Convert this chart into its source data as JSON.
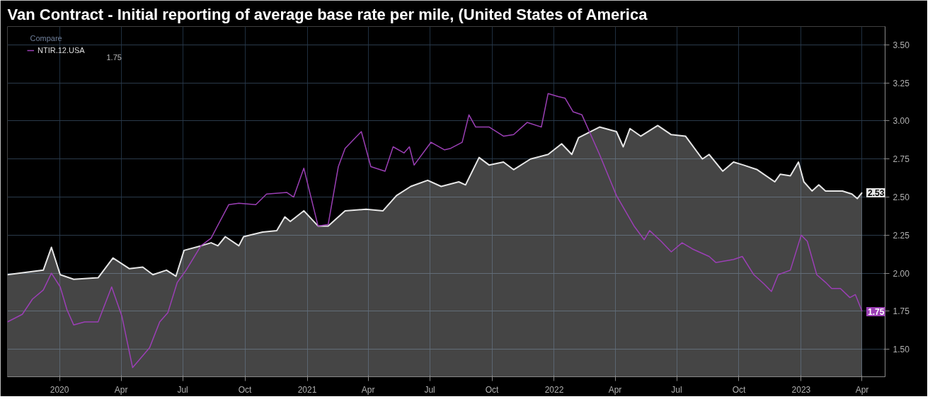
{
  "chart_data": {
    "type": "line",
    "title": "Van Contract - Initial reporting of average base rate per mile, (United States of America",
    "xlim": [
      "2019-10-16",
      "2023-05-05"
    ],
    "ylim": [
      1.32,
      3.62
    ],
    "xticks": [
      {
        "value": "2020-01-01",
        "label": "2020"
      },
      {
        "value": "2020-04-01",
        "label": "Apr"
      },
      {
        "value": "2020-07-01",
        "label": "Jul"
      },
      {
        "value": "2020-10-01",
        "label": "Oct"
      },
      {
        "value": "2021-01-01",
        "label": "2021"
      },
      {
        "value": "2021-04-01",
        "label": "Apr"
      },
      {
        "value": "2021-07-01",
        "label": "Jul"
      },
      {
        "value": "2021-10-01",
        "label": "Oct"
      },
      {
        "value": "2022-01-01",
        "label": "2022"
      },
      {
        "value": "2022-04-01",
        "label": "Apr"
      },
      {
        "value": "2022-07-01",
        "label": "Jul"
      },
      {
        "value": "2022-10-01",
        "label": "Oct"
      },
      {
        "value": "2023-01-01",
        "label": "2023"
      },
      {
        "value": "2023-04-01",
        "label": "Apr"
      }
    ],
    "yticks": [
      {
        "value": 1.5,
        "label": "1.50"
      },
      {
        "value": 1.75,
        "label": "1.75"
      },
      {
        "value": 2.0,
        "label": "2.00"
      },
      {
        "value": 2.25,
        "label": "2.25"
      },
      {
        "value": 2.5,
        "label": "2.50"
      },
      {
        "value": 2.75,
        "label": "2.75"
      },
      {
        "value": 3.0,
        "label": "3.00"
      },
      {
        "value": 3.25,
        "label": "3.25"
      },
      {
        "value": 3.5,
        "label": "3.50"
      }
    ],
    "grid": true,
    "legend": "top left",
    "annotations": [
      "Compare",
      "1.75"
    ],
    "series": [
      {
        "type": "area",
        "color": "#e6e6e6",
        "x": [
          "2019-10-16",
          "2019-12-08",
          "2019-12-20",
          "2020-01-02",
          "2020-01-22",
          "2020-02-27",
          "2020-03-20",
          "2020-04-13",
          "2020-05-03",
          "2020-05-18",
          "2020-06-07",
          "2020-06-21",
          "2020-07-03",
          "2020-07-28",
          "2020-08-12",
          "2020-08-22",
          "2020-09-02",
          "2020-09-22",
          "2020-09-29",
          "2020-10-27",
          "2020-11-17",
          "2020-11-29",
          "2020-12-07",
          "2020-12-27",
          "2021-01-17",
          "2021-02-01",
          "2021-02-26",
          "2021-03-29",
          "2021-04-23",
          "2021-05-13",
          "2021-06-03",
          "2021-06-28",
          "2021-07-18",
          "2021-08-13",
          "2021-08-23",
          "2021-09-12",
          "2021-09-27",
          "2021-10-18",
          "2021-11-02",
          "2021-11-27",
          "2021-12-23",
          "2022-01-12",
          "2022-01-27",
          "2022-02-06",
          "2022-03-09",
          "2022-04-03",
          "2022-04-13",
          "2022-04-23",
          "2022-05-09",
          "2022-06-03",
          "2022-06-23",
          "2022-07-14",
          "2022-08-08",
          "2022-08-18",
          "2022-09-07",
          "2022-09-23",
          "2022-10-08",
          "2022-10-28",
          "2022-11-23",
          "2022-12-01",
          "2022-12-16",
          "2022-12-28",
          "2023-01-05",
          "2023-01-17",
          "2023-01-27",
          "2023-02-06",
          "2023-03-03",
          "2023-03-17",
          "2023-03-25",
          "2023-04-01"
        ],
        "values": [
          1.99,
          2.02,
          2.17,
          1.99,
          1.96,
          1.97,
          2.1,
          2.03,
          2.04,
          1.99,
          2.02,
          1.98,
          2.15,
          2.18,
          2.2,
          2.18,
          2.24,
          2.18,
          2.24,
          2.27,
          2.28,
          2.37,
          2.34,
          2.41,
          2.31,
          2.31,
          2.41,
          2.42,
          2.41,
          2.51,
          2.57,
          2.61,
          2.57,
          2.6,
          2.58,
          2.76,
          2.71,
          2.73,
          2.68,
          2.75,
          2.78,
          2.85,
          2.78,
          2.89,
          2.96,
          2.93,
          2.83,
          2.95,
          2.9,
          2.97,
          2.91,
          2.9,
          2.75,
          2.78,
          2.67,
          2.73,
          2.71,
          2.68,
          2.6,
          2.65,
          2.64,
          2.73,
          2.6,
          2.54,
          2.58,
          2.54,
          2.54,
          2.52,
          2.49,
          2.53
        ],
        "value_labels": [
          null,
          null,
          null,
          null,
          null,
          null,
          null,
          null,
          null,
          null,
          null,
          null,
          null,
          null,
          null,
          null,
          null,
          null,
          null,
          null,
          null,
          null,
          null,
          null,
          null,
          null,
          null,
          null,
          null,
          null,
          null,
          null,
          null,
          null,
          null,
          null,
          null,
          null,
          null,
          null,
          null,
          null,
          null,
          null,
          null,
          null,
          null,
          null,
          null,
          null,
          null,
          null,
          null,
          null,
          null,
          null,
          null,
          null,
          null,
          null,
          null,
          null,
          null,
          null,
          null,
          null,
          null,
          null,
          null,
          "2.53"
        ]
      },
      {
        "name": "NTIR.12.USA",
        "color": "#9b3fb5",
        "x": [
          "2019-10-16",
          "2019-11-07",
          "2019-11-22",
          "2019-12-08",
          "2019-12-20",
          "2020-01-02",
          "2020-01-12",
          "2020-01-22",
          "2020-02-07",
          "2020-02-27",
          "2020-03-18",
          "2020-04-02",
          "2020-04-18",
          "2020-05-13",
          "2020-05-28",
          "2020-06-09",
          "2020-06-23",
          "2020-07-06",
          "2020-07-28",
          "2020-08-12",
          "2020-08-19",
          "2020-09-07",
          "2020-09-22",
          "2020-10-17",
          "2020-11-02",
          "2020-12-02",
          "2020-12-12",
          "2020-12-27",
          "2021-01-17",
          "2021-02-01",
          "2021-02-16",
          "2021-02-26",
          "2021-03-22",
          "2021-04-05",
          "2021-04-26",
          "2021-05-08",
          "2021-05-24",
          "2021-06-01",
          "2021-06-08",
          "2021-07-03",
          "2021-07-23",
          "2021-08-01",
          "2021-08-18",
          "2021-08-28",
          "2021-09-07",
          "2021-09-27",
          "2021-10-18",
          "2021-11-02",
          "2021-11-22",
          "2021-12-13",
          "2021-12-23",
          "2022-01-07",
          "2022-01-17",
          "2022-01-29",
          "2022-02-11",
          "2022-02-22",
          "2022-03-09",
          "2022-04-03",
          "2022-04-29",
          "2022-05-14",
          "2022-05-22",
          "2022-06-08",
          "2022-06-23",
          "2022-07-09",
          "2022-07-24",
          "2022-08-18",
          "2022-08-28",
          "2022-09-23",
          "2022-10-06",
          "2022-10-23",
          "2022-11-07",
          "2022-11-18",
          "2022-11-28",
          "2022-12-16",
          "2023-01-01",
          "2023-01-10",
          "2023-01-24",
          "2023-02-06",
          "2023-02-15",
          "2023-02-28",
          "2023-03-14",
          "2023-03-22",
          "2023-04-01"
        ],
        "values": [
          1.68,
          1.73,
          1.83,
          1.89,
          2.0,
          1.91,
          1.76,
          1.66,
          1.68,
          1.68,
          1.91,
          1.72,
          1.38,
          1.51,
          1.68,
          1.74,
          1.94,
          2.02,
          2.18,
          2.23,
          2.29,
          2.45,
          2.46,
          2.45,
          2.52,
          2.53,
          2.5,
          2.69,
          2.31,
          2.32,
          2.7,
          2.82,
          2.93,
          2.7,
          2.67,
          2.83,
          2.79,
          2.83,
          2.71,
          2.86,
          2.81,
          2.82,
          2.86,
          3.04,
          2.96,
          2.96,
          2.9,
          2.91,
          2.99,
          2.96,
          3.18,
          3.16,
          3.15,
          3.06,
          3.04,
          2.93,
          2.78,
          2.51,
          2.31,
          2.22,
          2.28,
          2.21,
          2.14,
          2.2,
          2.16,
          2.11,
          2.07,
          2.09,
          2.11,
          1.99,
          1.93,
          1.88,
          1.99,
          2.02,
          2.25,
          2.21,
          1.99,
          1.94,
          1.9,
          1.9,
          1.84,
          1.86,
          1.75
        ],
        "value_labels": [
          null,
          null,
          null,
          null,
          null,
          null,
          null,
          null,
          null,
          null,
          null,
          null,
          null,
          null,
          null,
          null,
          null,
          null,
          null,
          null,
          null,
          null,
          null,
          null,
          null,
          null,
          null,
          null,
          null,
          null,
          null,
          null,
          null,
          null,
          null,
          null,
          null,
          null,
          null,
          null,
          null,
          null,
          null,
          null,
          null,
          null,
          null,
          null,
          null,
          null,
          null,
          null,
          null,
          null,
          null,
          null,
          null,
          null,
          null,
          null,
          null,
          null,
          null,
          null,
          null,
          null,
          null,
          null,
          null,
          null,
          null,
          null,
          null,
          null,
          null,
          null,
          null,
          null,
          null,
          null,
          null,
          null,
          "1.75"
        ]
      }
    ]
  }
}
